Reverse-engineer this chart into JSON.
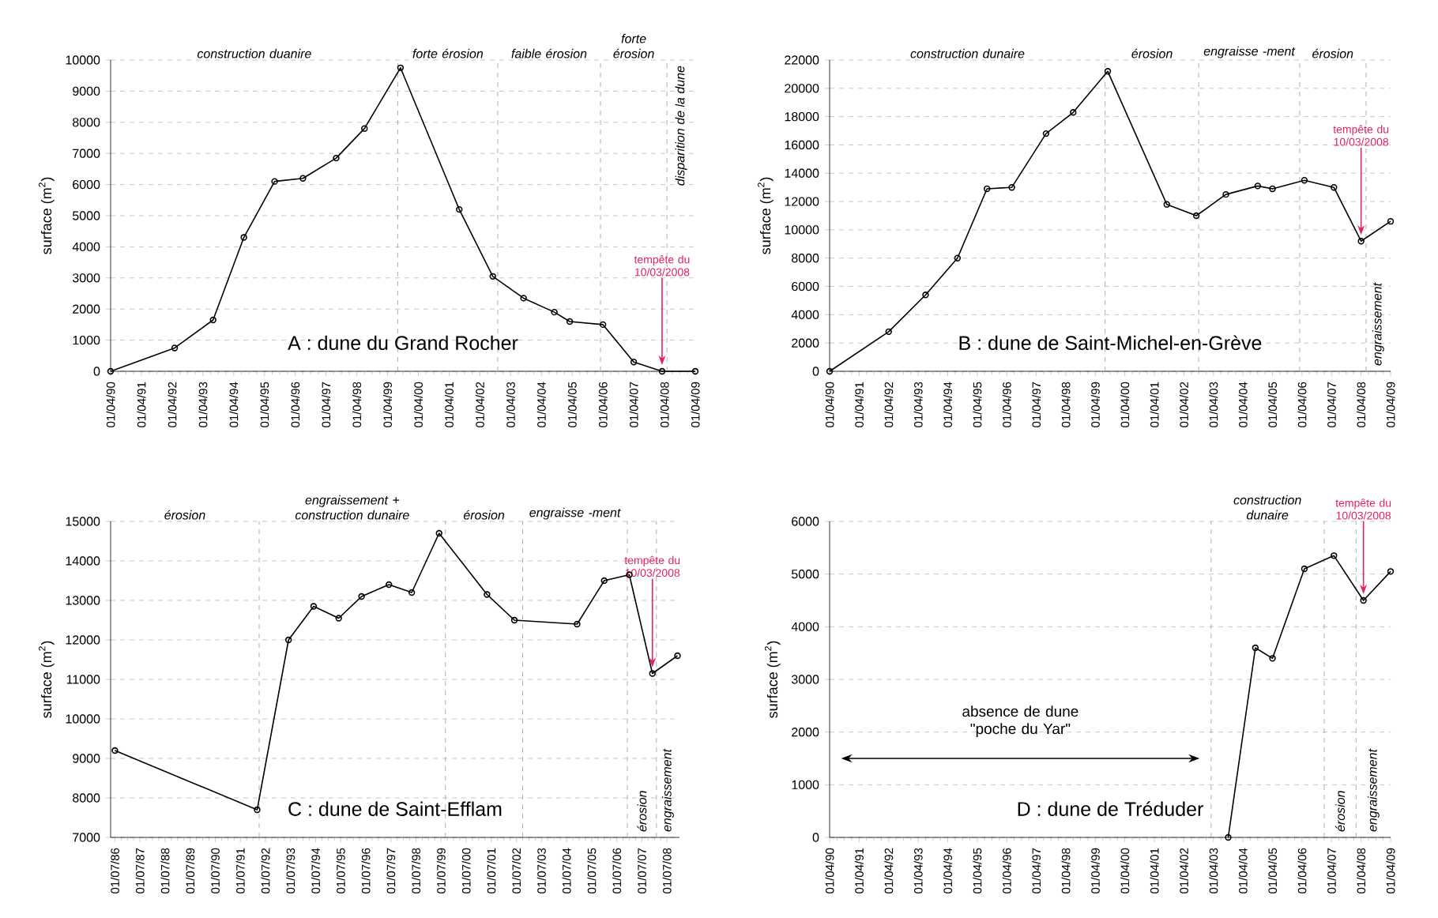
{
  "chart_data": [
    {
      "type": "line",
      "title": "A : dune du Grand Rocher",
      "ylabel": "surface (m$^{2}$)",
      "color": "#000000",
      "marker": "circle",
      "grid": "y",
      "x": [
        "1990-04",
        "1992-05",
        "1993-08",
        "1994-08",
        "1995-08",
        "1996-07",
        "1997-08",
        "1998-07",
        "1999-09",
        "2001-08",
        "2002-09",
        "2003-09",
        "2004-09",
        "2005-03",
        "2006-04",
        "2007-04",
        "2008-03",
        "2009-04"
      ],
      "values": [
        0,
        750,
        1650,
        4300,
        6100,
        6200,
        6850,
        7800,
        9750,
        5200,
        3050,
        2350,
        1900,
        1600,
        1500,
        300,
        0,
        0
      ],
      "xlim": [
        "1990-04-01",
        "2009-04-01"
      ],
      "ylim": [
        0,
        10000
      ],
      "yticks": [
        0,
        1000,
        2000,
        3000,
        4000,
        5000,
        6000,
        7000,
        8000,
        9000,
        10000
      ],
      "xticks": [
        {
          "value": "1990-04-01",
          "label": "01/04/90"
        },
        {
          "value": "1991-04-01",
          "label": "01/04/91"
        },
        {
          "value": "1992-04-01",
          "label": "01/04/92"
        },
        {
          "value": "1993-04-01",
          "label": "01/04/93"
        },
        {
          "value": "1994-04-01",
          "label": "01/04/94"
        },
        {
          "value": "1995-04-01",
          "label": "01/04/95"
        },
        {
          "value": "1996-04-01",
          "label": "01/04/96"
        },
        {
          "value": "1997-04-01",
          "label": "01/04/97"
        },
        {
          "value": "1998-04-01",
          "label": "01/04/98"
        },
        {
          "value": "1999-04-01",
          "label": "01/04/99"
        },
        {
          "value": "2000-04-01",
          "label": "01/04/00"
        },
        {
          "value": "2001-04-01",
          "label": "01/04/01"
        },
        {
          "value": "2002-04-01",
          "label": "01/04/02"
        },
        {
          "value": "2003-04-01",
          "label": "01/04/03"
        },
        {
          "value": "2004-04-01",
          "label": "01/04/04"
        },
        {
          "value": "2005-04-01",
          "label": "01/04/05"
        },
        {
          "value": "2006-04-01",
          "label": "01/04/06"
        },
        {
          "value": "2007-04-01",
          "label": "01/04/07"
        },
        {
          "value": "2008-04-01",
          "label": "01/04/08"
        },
        {
          "value": "2009-04-01",
          "label": "01/04/09"
        }
      ],
      "ref_lines": [
        {
          "axis": "x",
          "value": "1999-08",
          "color": "#999999",
          "line_style": "dashed"
        },
        {
          "axis": "x",
          "value": "2002-11",
          "color": "#999999",
          "line_style": "dashed"
        },
        {
          "axis": "x",
          "value": "2006-03",
          "color": "#999999",
          "line_style": "dashed"
        },
        {
          "axis": "x",
          "value": "2008-05",
          "color": "#999999",
          "line_style": "dashed"
        }
      ],
      "annotations": [
        "construction duanire",
        "forte érosion",
        "faible érosion",
        "forte érosion",
        "disparition de la dune",
        {
          "text": "tempête du 10/03/2008",
          "x": "2008-03",
          "y": 0
        }
      ]
    },
    {
      "type": "line",
      "title": "B : dune de Saint-Michel-en-Grève",
      "ylabel": "surface (m$^{2}$)",
      "color": "#000000",
      "marker": "circle",
      "grid": "y",
      "x": [
        "1990-04",
        "1992-04",
        "1993-07",
        "1994-08",
        "1995-08",
        "1996-06",
        "1997-08",
        "1998-07",
        "1999-09",
        "2001-09",
        "2002-09",
        "2003-09",
        "2004-10",
        "2005-04",
        "2006-05",
        "2007-05",
        "2008-04",
        "2009-04"
      ],
      "values": [
        0,
        2800,
        5400,
        8000,
        12900,
        13000,
        16800,
        18300,
        21200,
        11800,
        11000,
        12500,
        13100,
        12900,
        13500,
        13000,
        9200,
        10600
      ],
      "xlim": [
        "1990-04-01",
        "2009-04-01"
      ],
      "ylim": [
        0,
        22000
      ],
      "yticks": [
        0,
        2000,
        4000,
        6000,
        8000,
        10000,
        12000,
        14000,
        16000,
        18000,
        20000,
        22000
      ],
      "xticks": [
        {
          "value": "1990-04-01",
          "label": "01/04/90"
        },
        {
          "value": "1991-04-01",
          "label": "01/04/91"
        },
        {
          "value": "1992-04-01",
          "label": "01/04/92"
        },
        {
          "value": "1993-04-01",
          "label": "01/04/93"
        },
        {
          "value": "1994-04-01",
          "label": "01/04/94"
        },
        {
          "value": "1995-04-01",
          "label": "01/04/95"
        },
        {
          "value": "1996-04-01",
          "label": "01/04/96"
        },
        {
          "value": "1997-04-01",
          "label": "01/04/97"
        },
        {
          "value": "1998-04-01",
          "label": "01/04/98"
        },
        {
          "value": "1999-04-01",
          "label": "01/04/99"
        },
        {
          "value": "2000-04-01",
          "label": "01/04/00"
        },
        {
          "value": "2001-04-01",
          "label": "01/04/01"
        },
        {
          "value": "2002-04-01",
          "label": "01/04/02"
        },
        {
          "value": "2003-04-01",
          "label": "01/04/03"
        },
        {
          "value": "2004-04-01",
          "label": "01/04/04"
        },
        {
          "value": "2005-04-01",
          "label": "01/04/05"
        },
        {
          "value": "2006-04-01",
          "label": "01/04/06"
        },
        {
          "value": "2007-04-01",
          "label": "01/04/07"
        },
        {
          "value": "2008-04-01",
          "label": "01/04/08"
        },
        {
          "value": "2009-04-01",
          "label": "01/04/09"
        }
      ],
      "ref_lines": [
        {
          "axis": "x",
          "value": "1999-08",
          "color": "#999999",
          "line_style": "dashed"
        },
        {
          "axis": "x",
          "value": "2002-10",
          "color": "#999999",
          "line_style": "dashed"
        },
        {
          "axis": "x",
          "value": "2006-03",
          "color": "#999999",
          "line_style": "dashed"
        },
        {
          "axis": "x",
          "value": "2008-06",
          "color": "#999999",
          "line_style": "dashed"
        }
      ],
      "annotations": [
        "construction dunaire",
        "érosion",
        "engraisse -ment",
        "érosion",
        "engraissement",
        {
          "text": "tempête du 10/03/2008",
          "x": "2008-04",
          "y": 9200
        }
      ]
    },
    {
      "type": "line",
      "title": "C : dune de Saint-Efflam",
      "ylabel": "surface (m$^{2}$)",
      "color": "#000000",
      "marker": "circle",
      "grid": "y",
      "x": [
        "1986-07",
        "1992-03",
        "1993-06",
        "1994-06",
        "1995-06",
        "1996-05",
        "1997-06",
        "1998-05",
        "1999-06",
        "2001-05",
        "2002-06",
        "2004-12",
        "2006-01",
        "2007-01",
        "2007-12",
        "2008-12"
      ],
      "values": [
        9200,
        7700,
        12000,
        12850,
        12550,
        13100,
        13400,
        13200,
        14700,
        13150,
        12500,
        12400,
        13500,
        13650,
        11150,
        11600
      ],
      "xlim": [
        "1986-05-01",
        "2009-01-01"
      ],
      "ylim": [
        7000,
        15000
      ],
      "yticks": [
        7000,
        8000,
        9000,
        10000,
        11000,
        12000,
        13000,
        14000,
        15000
      ],
      "xticks": [
        {
          "value": "1986-07-01",
          "label": "01/07/86"
        },
        {
          "value": "1987-07-01",
          "label": "01/07/87"
        },
        {
          "value": "1988-07-01",
          "label": "01/07/88"
        },
        {
          "value": "1989-07-01",
          "label": "01/07/89"
        },
        {
          "value": "1990-07-01",
          "label": "01/07/90"
        },
        {
          "value": "1991-07-01",
          "label": "01/07/91"
        },
        {
          "value": "1992-07-01",
          "label": "01/07/92"
        },
        {
          "value": "1993-07-01",
          "label": "01/07/93"
        },
        {
          "value": "1994-07-01",
          "label": "01/07/94"
        },
        {
          "value": "1995-07-01",
          "label": "01/07/95"
        },
        {
          "value": "1996-07-01",
          "label": "01/07/96"
        },
        {
          "value": "1997-07-01",
          "label": "01/07/97"
        },
        {
          "value": "1998-07-01",
          "label": "01/07/98"
        },
        {
          "value": "1999-07-01",
          "label": "01/07/99"
        },
        {
          "value": "2000-07-01",
          "label": "01/07/00"
        },
        {
          "value": "2001-07-01",
          "label": "01/07/01"
        },
        {
          "value": "2002-07-01",
          "label": "01/07/02"
        },
        {
          "value": "2003-07-01",
          "label": "01/07/03"
        },
        {
          "value": "2004-07-01",
          "label": "01/07/04"
        },
        {
          "value": "2005-07-01",
          "label": "01/07/05"
        },
        {
          "value": "2006-07-01",
          "label": "01/07/06"
        },
        {
          "value": "2007-07-01",
          "label": "01/07/07"
        },
        {
          "value": "2008-07-01",
          "label": "01/07/08"
        }
      ],
      "ref_lines": [
        {
          "axis": "x",
          "value": "1992-04",
          "color": "#999999",
          "line_style": "dashed"
        },
        {
          "axis": "x",
          "value": "1999-09",
          "color": "#999999",
          "line_style": "dashed"
        },
        {
          "axis": "x",
          "value": "2002-10",
          "color": "#999999",
          "line_style": "dashed"
        },
        {
          "axis": "x",
          "value": "2006-12",
          "color": "#999999",
          "line_style": "dashed"
        },
        {
          "axis": "x",
          "value": "2008-02",
          "color": "#999999",
          "line_style": "dashed"
        }
      ],
      "annotations": [
        "érosion",
        "engraissement + construction dunaire",
        "érosion",
        "engraisse -ment",
        "érosion",
        "engraissement",
        {
          "text": "tempête du 10/03/2008",
          "x": "2007-12",
          "y": 11150
        }
      ]
    },
    {
      "type": "line",
      "title": "D : dune de Tréduder",
      "ylabel": "surface (m$^{2}$)",
      "color": "#000000",
      "marker": "circle",
      "grid": "y",
      "x": [
        "2003-10",
        "2004-09",
        "2005-04",
        "2006-05",
        "2007-05",
        "2008-05",
        "2009-04"
      ],
      "values": [
        0,
        3600,
        3400,
        5100,
        5350,
        4500,
        5050
      ],
      "xlim": [
        "1990-04-01",
        "2009-04-01"
      ],
      "ylim": [
        0,
        6000
      ],
      "yticks": [
        0,
        1000,
        2000,
        3000,
        4000,
        5000,
        6000
      ],
      "xticks": [
        {
          "value": "1990-04-01",
          "label": "01/04/90"
        },
        {
          "value": "1991-04-01",
          "label": "01/04/91"
        },
        {
          "value": "1992-04-01",
          "label": "01/04/92"
        },
        {
          "value": "1993-04-01",
          "label": "01/04/93"
        },
        {
          "value": "1994-04-01",
          "label": "01/04/94"
        },
        {
          "value": "1995-04-01",
          "label": "01/04/95"
        },
        {
          "value": "1996-04-01",
          "label": "01/04/96"
        },
        {
          "value": "1997-04-01",
          "label": "01/04/97"
        },
        {
          "value": "1998-04-01",
          "label": "01/04/98"
        },
        {
          "value": "1999-04-01",
          "label": "01/04/99"
        },
        {
          "value": "2000-04-01",
          "label": "01/04/00"
        },
        {
          "value": "2001-04-01",
          "label": "01/04/01"
        },
        {
          "value": "2002-04-01",
          "label": "01/04/02"
        },
        {
          "value": "2003-04-01",
          "label": "01/04/03"
        },
        {
          "value": "2004-04-01",
          "label": "01/04/04"
        },
        {
          "value": "2005-04-01",
          "label": "01/04/05"
        },
        {
          "value": "2006-04-01",
          "label": "01/04/06"
        },
        {
          "value": "2007-04-01",
          "label": "01/04/07"
        },
        {
          "value": "2008-04-01",
          "label": "01/04/08"
        },
        {
          "value": "2009-04-01",
          "label": "01/04/09"
        }
      ],
      "ref_lines": [
        {
          "axis": "x",
          "value": "2003-03",
          "color": "#999999",
          "line_style": "dashed"
        },
        {
          "axis": "x",
          "value": "2007-01",
          "color": "#999999",
          "line_style": "dashed"
        },
        {
          "axis": "x",
          "value": "2008-02",
          "color": "#999999",
          "line_style": "dashed"
        }
      ],
      "annotations": [
        "absence de dune \"poche du Yar\"",
        "construction dunaire",
        "érosion",
        "engraissement",
        {
          "text": "tempête du 10/03/2008",
          "x": "2008-05",
          "y": 4500
        }
      ]
    }
  ]
}
